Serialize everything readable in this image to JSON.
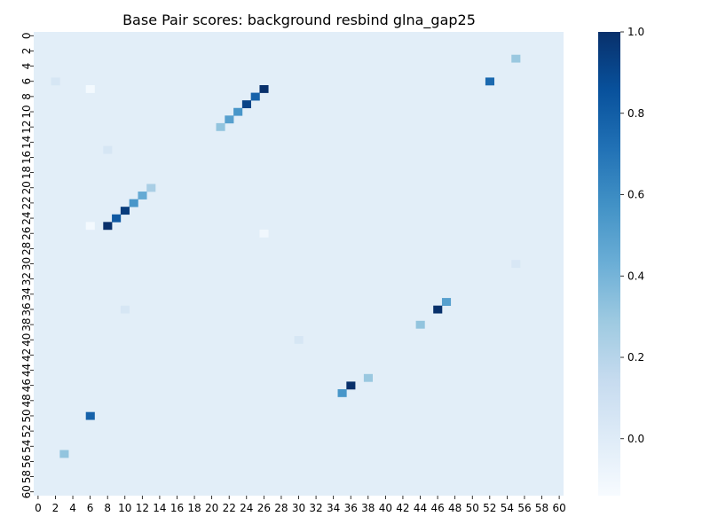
{
  "chart_data": {
    "type": "heatmap",
    "title": "Base Pair scores: background resbind glna_gap25",
    "xlabel": "",
    "ylabel": "",
    "rows": 61,
    "cols": 61,
    "x_ticks": [
      0,
      2,
      4,
      6,
      8,
      10,
      12,
      14,
      16,
      18,
      20,
      22,
      24,
      26,
      28,
      30,
      32,
      34,
      36,
      38,
      40,
      42,
      44,
      46,
      48,
      50,
      52,
      54,
      56,
      58,
      60
    ],
    "y_ticks": [
      0,
      2,
      4,
      6,
      8,
      10,
      12,
      14,
      16,
      18,
      20,
      22,
      24,
      26,
      28,
      30,
      32,
      34,
      36,
      38,
      40,
      42,
      44,
      46,
      48,
      50,
      52,
      54,
      56,
      58,
      60
    ],
    "background_value": -0.02,
    "colorscale": "Blues",
    "colorbar": {
      "vmin": -0.14,
      "vmax": 1.0,
      "ticks": [
        0.0,
        0.2,
        0.4,
        0.6,
        0.8,
        1.0
      ],
      "tick_labels": [
        "0.0",
        "0.2",
        "0.4",
        "0.6",
        "0.8",
        "1.0"
      ]
    },
    "cells": [
      {
        "row": 7,
        "col": 26,
        "value": 1.0
      },
      {
        "row": 8,
        "col": 25,
        "value": 0.78
      },
      {
        "row": 9,
        "col": 24,
        "value": 0.92
      },
      {
        "row": 10,
        "col": 23,
        "value": 0.55
      },
      {
        "row": 11,
        "col": 22,
        "value": 0.5
      },
      {
        "row": 12,
        "col": 21,
        "value": 0.32
      },
      {
        "row": 20,
        "col": 13,
        "value": 0.25
      },
      {
        "row": 21,
        "col": 12,
        "value": 0.45
      },
      {
        "row": 22,
        "col": 11,
        "value": 0.55
      },
      {
        "row": 23,
        "col": 10,
        "value": 0.95
      },
      {
        "row": 24,
        "col": 9,
        "value": 0.82
      },
      {
        "row": 25,
        "col": 8,
        "value": 1.0
      },
      {
        "row": 6,
        "col": 52,
        "value": 0.75
      },
      {
        "row": 3,
        "col": 55,
        "value": 0.3
      },
      {
        "row": 35,
        "col": 47,
        "value": 0.5
      },
      {
        "row": 36,
        "col": 46,
        "value": 1.0
      },
      {
        "row": 38,
        "col": 44,
        "value": 0.32
      },
      {
        "row": 45,
        "col": 38,
        "value": 0.3
      },
      {
        "row": 46,
        "col": 36,
        "value": 1.0
      },
      {
        "row": 47,
        "col": 35,
        "value": 0.55
      },
      {
        "row": 50,
        "col": 6,
        "value": 0.78
      },
      {
        "row": 55,
        "col": 3,
        "value": 0.32
      },
      {
        "row": 7,
        "col": 6,
        "value": -0.12
      },
      {
        "row": 25,
        "col": 6,
        "value": -0.12
      },
      {
        "row": 26,
        "col": 26,
        "value": -0.1
      },
      {
        "row": 6,
        "col": 2,
        "value": 0.05
      },
      {
        "row": 15,
        "col": 8,
        "value": 0.05
      },
      {
        "row": 36,
        "col": 10,
        "value": 0.05
      },
      {
        "row": 40,
        "col": 30,
        "value": 0.05
      },
      {
        "row": 30,
        "col": 55,
        "value": 0.04
      }
    ]
  }
}
